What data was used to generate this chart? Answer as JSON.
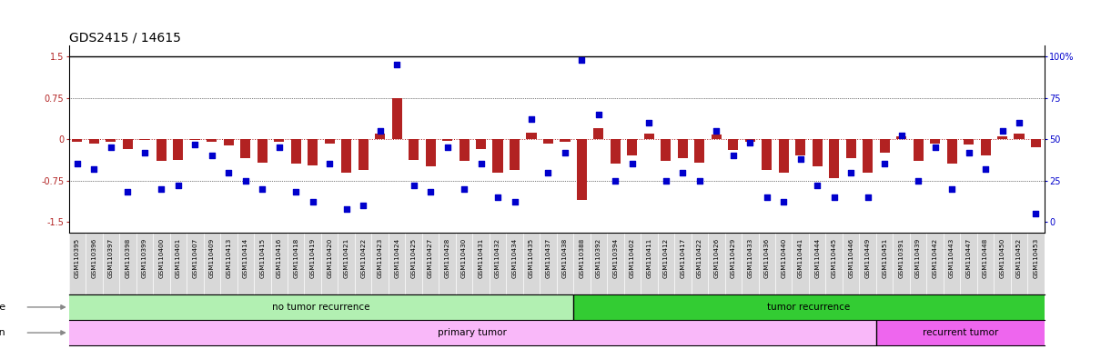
{
  "title": "GDS2415 / 14615",
  "samples": [
    "GSM110395",
    "GSM110396",
    "GSM110397",
    "GSM110398",
    "GSM110399",
    "GSM110400",
    "GSM110401",
    "GSM110407",
    "GSM110409",
    "GSM110413",
    "GSM110414",
    "GSM110415",
    "GSM110416",
    "GSM110418",
    "GSM110419",
    "GSM110420",
    "GSM110421",
    "GSM110422",
    "GSM110423",
    "GSM110424",
    "GSM110425",
    "GSM110427",
    "GSM110428",
    "GSM110430",
    "GSM110431",
    "GSM110432",
    "GSM110434",
    "GSM110435",
    "GSM110437",
    "GSM110438",
    "GSM110388",
    "GSM110392",
    "GSM110394",
    "GSM110402",
    "GSM110411",
    "GSM110412",
    "GSM110417",
    "GSM110422",
    "GSM110426",
    "GSM110429",
    "GSM110433",
    "GSM110436",
    "GSM110440",
    "GSM110441",
    "GSM110444",
    "GSM110445",
    "GSM110446",
    "GSM110449",
    "GSM110451",
    "GSM110391",
    "GSM110439",
    "GSM110442",
    "GSM110443",
    "GSM110447",
    "GSM110448",
    "GSM110450",
    "GSM110452",
    "GSM110453"
  ],
  "log2_ratio": [
    -0.05,
    -0.08,
    -0.05,
    -0.18,
    -0.02,
    -0.4,
    -0.38,
    -0.02,
    -0.05,
    -0.12,
    -0.35,
    -0.42,
    -0.05,
    -0.45,
    -0.48,
    -0.08,
    -0.6,
    -0.55,
    0.1,
    0.75,
    -0.38,
    -0.5,
    -0.03,
    -0.4,
    -0.18,
    -0.6,
    -0.55,
    0.12,
    -0.08,
    -0.05,
    -1.1,
    0.2,
    -0.45,
    -0.3,
    0.1,
    -0.4,
    -0.35,
    -0.42,
    0.08,
    -0.2,
    -0.05,
    -0.55,
    -0.6,
    -0.3,
    -0.5,
    -0.7,
    -0.35,
    -0.6,
    -0.25,
    0.05,
    -0.4,
    -0.08,
    -0.45,
    -0.1,
    -0.3,
    0.05,
    0.1,
    -0.15
  ],
  "percentile": [
    35,
    32,
    45,
    18,
    42,
    20,
    22,
    47,
    40,
    30,
    25,
    20,
    45,
    18,
    12,
    35,
    8,
    10,
    55,
    95,
    22,
    18,
    45,
    20,
    35,
    15,
    12,
    62,
    30,
    42,
    98,
    65,
    25,
    35,
    60,
    25,
    30,
    25,
    55,
    40,
    48,
    15,
    12,
    38,
    22,
    15,
    30,
    15,
    35,
    52,
    25,
    45,
    20,
    42,
    32,
    55,
    60,
    5
  ],
  "no_recurrence_count": 30,
  "recurrence_count": 28,
  "primary_tumor_count": 48,
  "recurrent_tumor_count": 10,
  "bar_color": "#b22222",
  "dot_color": "#0000cc",
  "color_no_recurrence": "#b2f0b2",
  "color_recurrence": "#33cc33",
  "color_primary": "#f9b8f9",
  "color_recurrent": "#ee66ee",
  "ylim": [
    -1.7,
    1.7
  ],
  "title_fontsize": 10,
  "tick_fontsize": 7,
  "bar_width": 0.6
}
